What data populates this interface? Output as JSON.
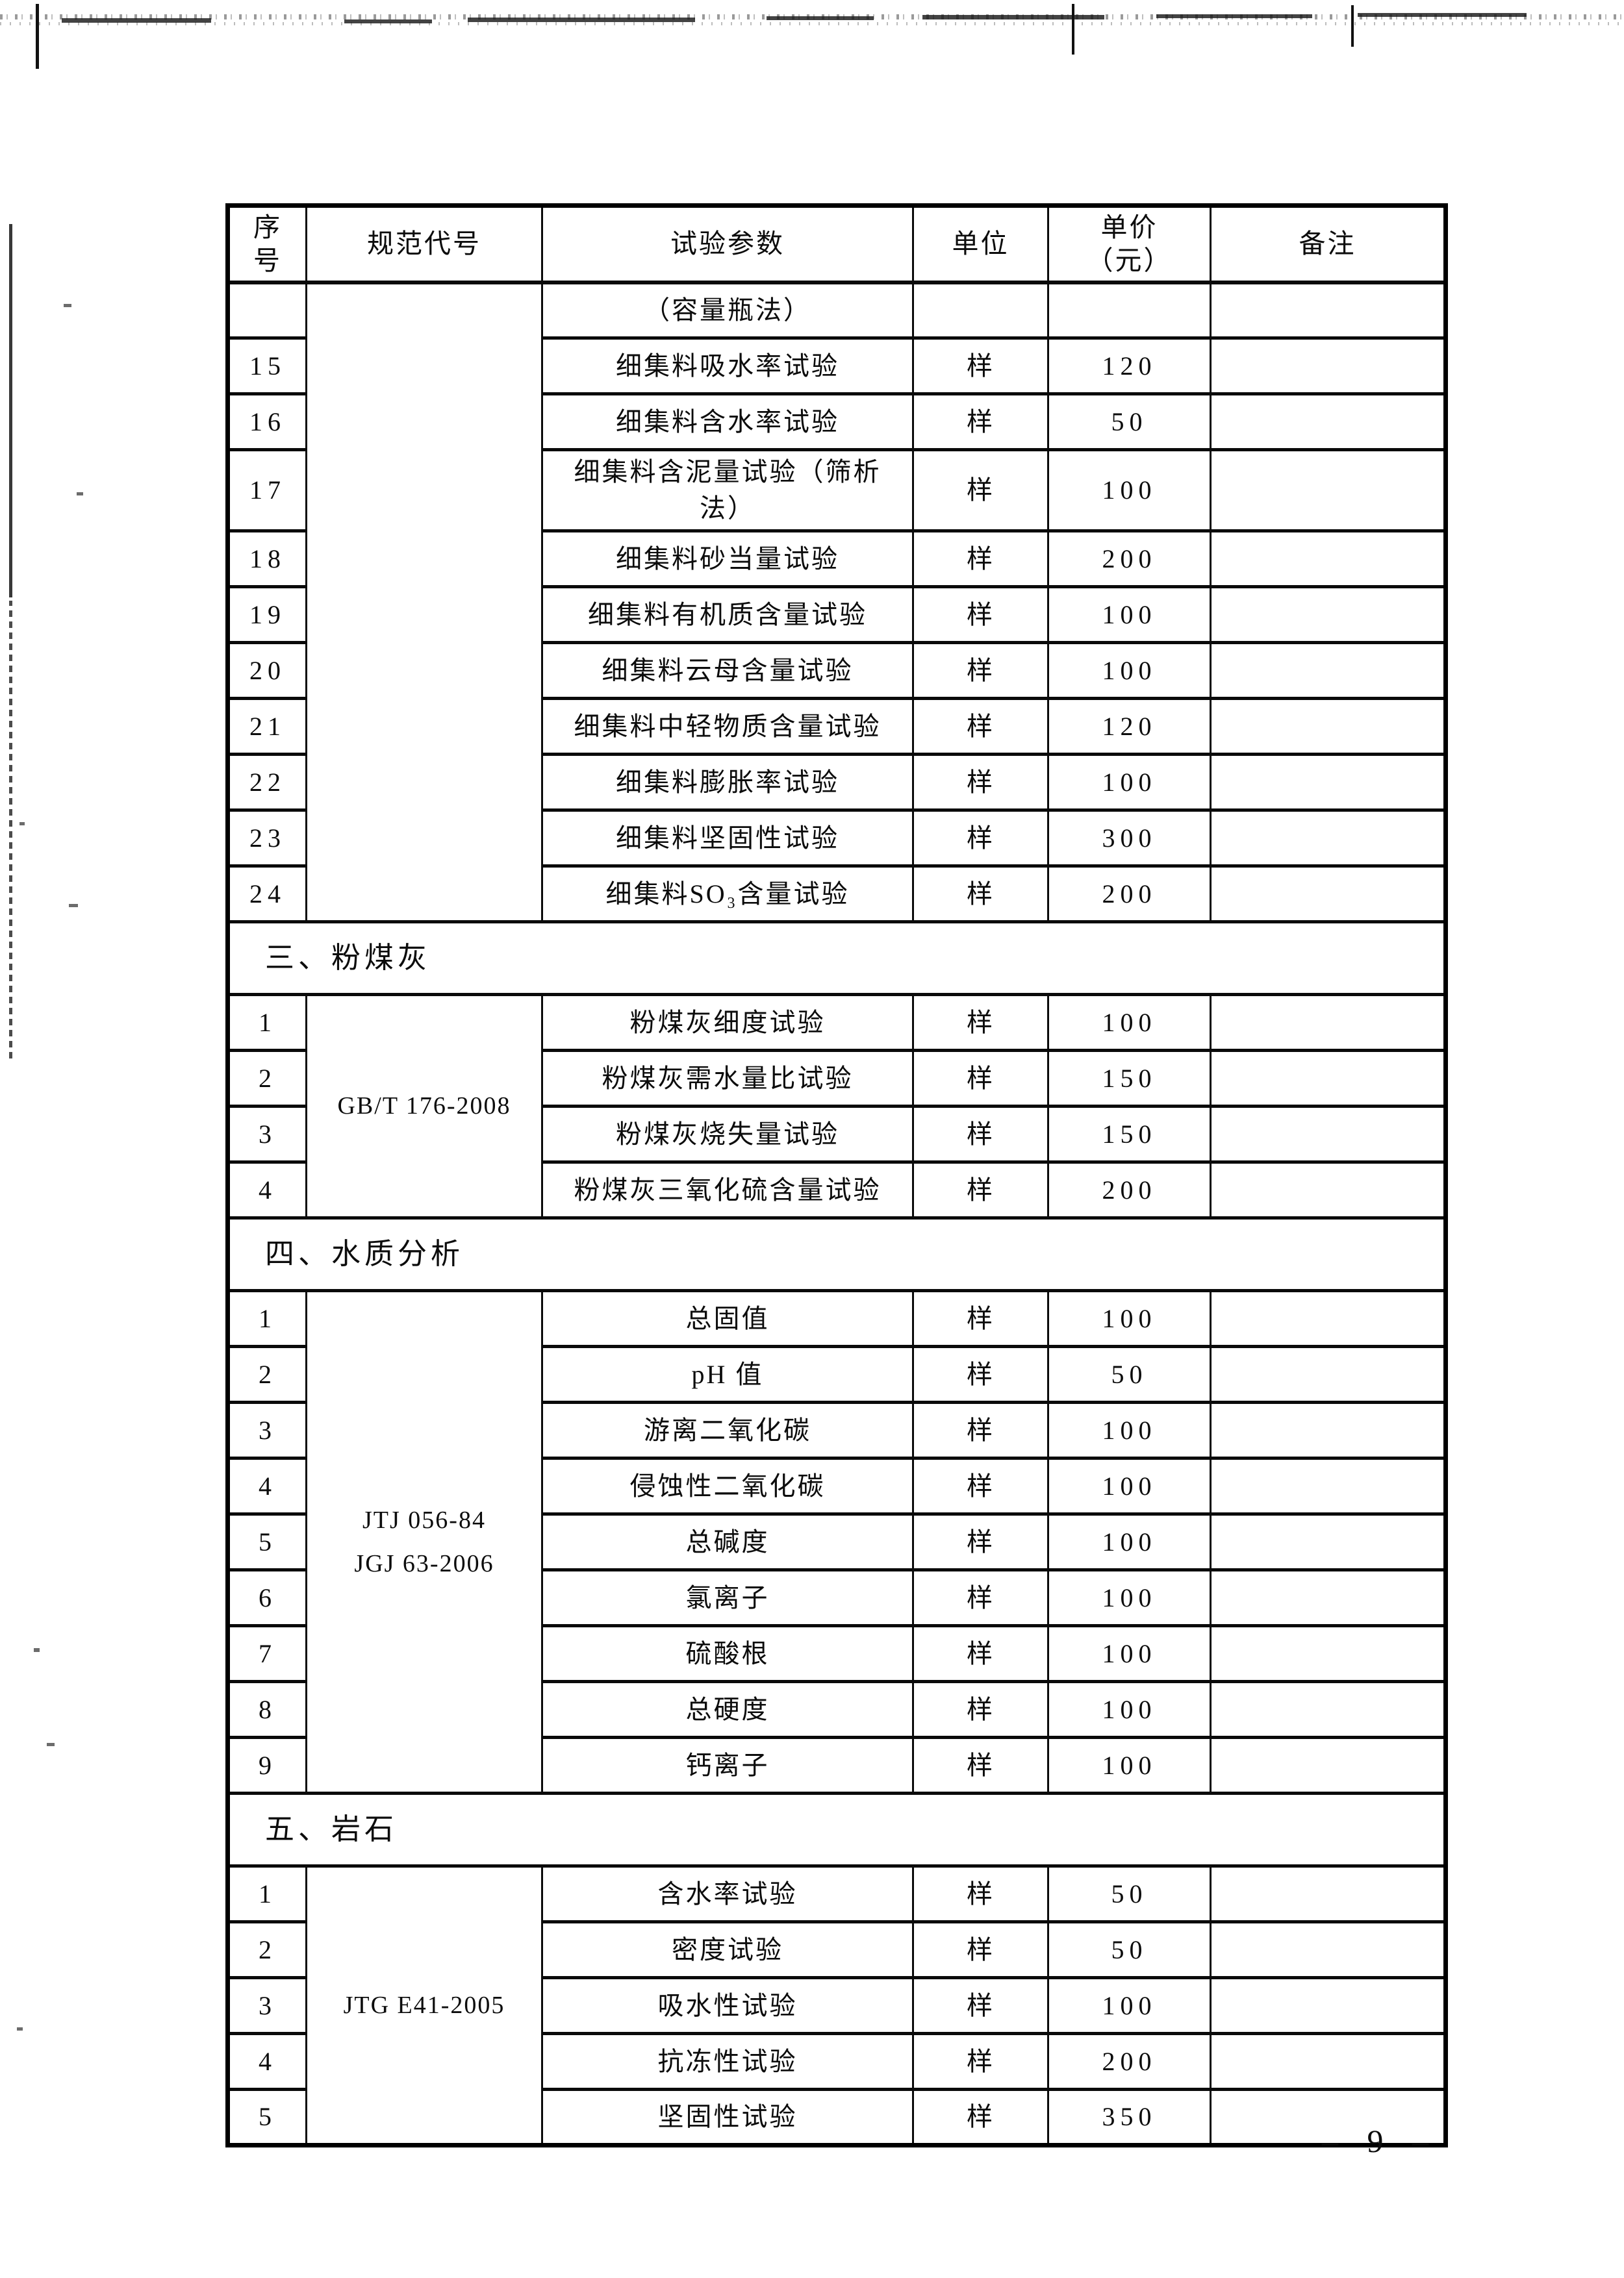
{
  "page": {
    "footer_page_number": "– 9 –"
  },
  "table": {
    "headers": {
      "seq": "序\n号",
      "spec": "规范代号",
      "param": "试验参数",
      "unit": "单位",
      "price": "单价\n（元）",
      "remark": "备注"
    },
    "sections": [
      {
        "spec_code": "",
        "rows": [
          {
            "seq": "",
            "param": "（容量瓶法）",
            "unit": "",
            "price": "",
            "remark": ""
          },
          {
            "seq": "15",
            "param": "细集料吸水率试验",
            "unit": "样",
            "price": "120",
            "remark": ""
          },
          {
            "seq": "16",
            "param": "细集料含水率试验",
            "unit": "样",
            "price": "50",
            "remark": ""
          },
          {
            "seq": "17",
            "param": "细集料含泥量试验（筛析\n法）",
            "unit": "样",
            "price": "100",
            "remark": ""
          },
          {
            "seq": "18",
            "param": "细集料砂当量试验",
            "unit": "样",
            "price": "200",
            "remark": ""
          },
          {
            "seq": "19",
            "param": "细集料有机质含量试验",
            "unit": "样",
            "price": "100",
            "remark": ""
          },
          {
            "seq": "20",
            "param": "细集料云母含量试验",
            "unit": "样",
            "price": "100",
            "remark": ""
          },
          {
            "seq": "21",
            "param": "细集料中轻物质含量试验",
            "unit": "样",
            "price": "120",
            "remark": ""
          },
          {
            "seq": "22",
            "param": "细集料膨胀率试验",
            "unit": "样",
            "price": "100",
            "remark": ""
          },
          {
            "seq": "23",
            "param": "细集料坚固性试验",
            "unit": "样",
            "price": "300",
            "remark": ""
          },
          {
            "seq": "24",
            "param": "细集料SO₃含量试验",
            "unit": "样",
            "price": "200",
            "remark": ""
          }
        ]
      },
      {
        "title": "三、粉煤灰"
      },
      {
        "spec_code": "GB/T 176-2008",
        "rows": [
          {
            "seq": "1",
            "param": "粉煤灰细度试验",
            "unit": "样",
            "price": "100",
            "remark": ""
          },
          {
            "seq": "2",
            "param": "粉煤灰需水量比试验",
            "unit": "样",
            "price": "150",
            "remark": ""
          },
          {
            "seq": "3",
            "param": "粉煤灰烧失量试验",
            "unit": "样",
            "price": "150",
            "remark": ""
          },
          {
            "seq": "4",
            "param": "粉煤灰三氧化硫含量试验",
            "unit": "样",
            "price": "200",
            "remark": ""
          }
        ]
      },
      {
        "title": "四、水质分析"
      },
      {
        "spec_code": "JTJ 056-84\nJGJ 63-2006",
        "rows": [
          {
            "seq": "1",
            "param": "总固值",
            "unit": "样",
            "price": "100",
            "remark": ""
          },
          {
            "seq": "2",
            "param": "pH 值",
            "unit": "样",
            "price": "50",
            "remark": ""
          },
          {
            "seq": "3",
            "param": "游离二氧化碳",
            "unit": "样",
            "price": "100",
            "remark": ""
          },
          {
            "seq": "4",
            "param": "侵蚀性二氧化碳",
            "unit": "样",
            "price": "100",
            "remark": ""
          },
          {
            "seq": "5",
            "param": "总碱度",
            "unit": "样",
            "price": "100",
            "remark": ""
          },
          {
            "seq": "6",
            "param": "氯离子",
            "unit": "样",
            "price": "100",
            "remark": ""
          },
          {
            "seq": "7",
            "param": "硫酸根",
            "unit": "样",
            "price": "100",
            "remark": ""
          },
          {
            "seq": "8",
            "param": "总硬度",
            "unit": "样",
            "price": "100",
            "remark": ""
          },
          {
            "seq": "9",
            "param": "钙离子",
            "unit": "样",
            "price": "100",
            "remark": ""
          }
        ]
      },
      {
        "title": "五、岩石"
      },
      {
        "spec_code": "JTG E41-2005",
        "rows": [
          {
            "seq": "1",
            "param": "含水率试验",
            "unit": "样",
            "price": "50",
            "remark": ""
          },
          {
            "seq": "2",
            "param": "密度试验",
            "unit": "样",
            "price": "50",
            "remark": ""
          },
          {
            "seq": "3",
            "param": "吸水性试验",
            "unit": "样",
            "price": "100",
            "remark": ""
          },
          {
            "seq": "4",
            "param": "抗冻性试验",
            "unit": "样",
            "price": "200",
            "remark": ""
          },
          {
            "seq": "5",
            "param": "坚固性试验",
            "unit": "样",
            "price": "350",
            "remark": ""
          }
        ]
      }
    ]
  }
}
